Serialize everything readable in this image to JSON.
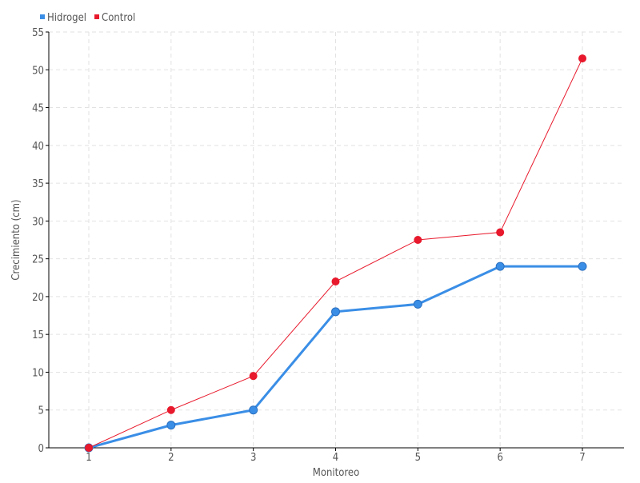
{
  "chart_data": {
    "type": "line",
    "title": "",
    "xlabel": "Monitoreo",
    "ylabel": "Crecimiento (cm)",
    "x": [
      1,
      2,
      3,
      4,
      5,
      6,
      7
    ],
    "x_tick_labels": [
      "1",
      "2",
      "3",
      "4",
      "5",
      "6",
      "7"
    ],
    "ylim": [
      0,
      55
    ],
    "y_ticks": [
      0,
      5,
      10,
      15,
      20,
      25,
      30,
      35,
      40,
      45,
      50,
      55
    ],
    "grid": true,
    "legend_position": "top-left",
    "series": [
      {
        "name": "Hidrogel",
        "color": "#3a8ee6",
        "values": [
          0,
          3,
          5,
          18,
          19,
          24,
          24
        ]
      },
      {
        "name": "Control",
        "color": "#e8192c",
        "values": [
          0,
          5,
          9.5,
          22,
          27.5,
          28.5,
          51.5
        ]
      }
    ]
  }
}
